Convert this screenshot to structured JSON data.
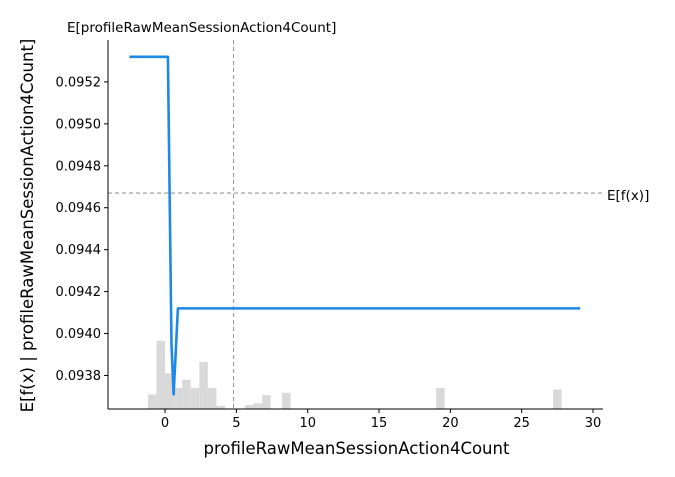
{
  "chart_data": {
    "type": "line",
    "xlabel": "profileRawMeanSessionAction4Count",
    "ylabel": "E[f(x) | profileRawMeanSessionAction4Count]",
    "xlim": [
      -4,
      30.7
    ],
    "ylim": [
      0.09364,
      0.0954
    ],
    "xticks": [
      0,
      5,
      10,
      15,
      20,
      25,
      30
    ],
    "xtick_labels": [
      "0",
      "5",
      "10",
      "15",
      "20",
      "25",
      "30"
    ],
    "yticks": [
      0.0938,
      0.094,
      0.0942,
      0.0944,
      0.0946,
      0.0948,
      0.095,
      0.0952
    ],
    "ytick_labels": [
      "0.0938",
      "0.0940",
      "0.0942",
      "0.0944",
      "0.0946",
      "0.0948",
      "0.0950",
      "0.0952"
    ],
    "grid": false,
    "series": [
      {
        "color": "#1E88E5",
        "x": [
          -2.5,
          0.2,
          0.45,
          0.6,
          0.9,
          29.1
        ],
        "y": [
          0.09532,
          0.09532,
          0.09395,
          0.09371,
          0.09412,
          0.09412
        ]
      }
    ],
    "expected_value": {
      "label": "E[f(x)]",
      "y": 0.09467
    },
    "feature_expected": {
      "label": "E[profileRawMeanSessionAction4Count]",
      "x": 4.8
    },
    "histogram": {
      "color": "#D9D9D9",
      "bins": [
        {
          "x0": -1.2,
          "x1": -0.6,
          "v": 0.18
        },
        {
          "x0": -0.6,
          "x1": 0.0,
          "v": 0.84
        },
        {
          "x0": 0.0,
          "x1": 0.6,
          "v": 0.44
        },
        {
          "x0": 0.6,
          "x1": 1.2,
          "v": 0.26
        },
        {
          "x0": 1.2,
          "x1": 1.8,
          "v": 0.36
        },
        {
          "x0": 1.8,
          "x1": 2.4,
          "v": 0.26
        },
        {
          "x0": 2.4,
          "x1": 3.0,
          "v": 0.58
        },
        {
          "x0": 3.0,
          "x1": 3.6,
          "v": 0.26
        },
        {
          "x0": 3.6,
          "x1": 4.2,
          "v": 0.04
        },
        {
          "x0": 5.6,
          "x1": 6.2,
          "v": 0.05
        },
        {
          "x0": 6.2,
          "x1": 6.8,
          "v": 0.07
        },
        {
          "x0": 6.8,
          "x1": 7.4,
          "v": 0.17
        },
        {
          "x0": 8.2,
          "x1": 8.8,
          "v": 0.2
        },
        {
          "x0": 19.0,
          "x1": 19.6,
          "v": 0.26
        },
        {
          "x0": 27.2,
          "x1": 27.8,
          "v": 0.24
        }
      ]
    }
  }
}
